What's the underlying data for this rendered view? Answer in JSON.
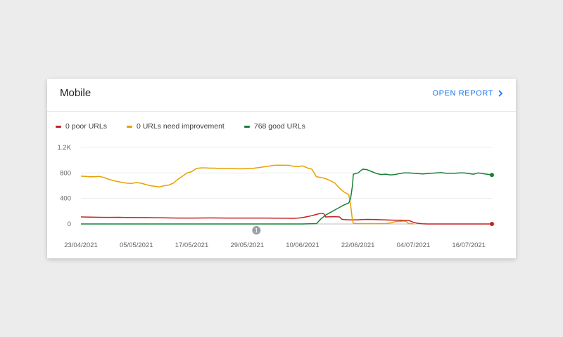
{
  "card": {
    "title": "Mobile",
    "open_report_label": "OPEN REPORT"
  },
  "colors": {
    "poor": "#c5221f",
    "needs_improvement": "#e8a000",
    "good": "#188038",
    "link": "#1a73e8"
  },
  "chart_data": {
    "type": "line",
    "title": "",
    "xlabel": "",
    "ylabel": "",
    "ylim": [
      0,
      1200
    ],
    "yticks": [
      {
        "value": 0,
        "label": "0"
      },
      {
        "value": 400,
        "label": "400"
      },
      {
        "value": 800,
        "label": "800"
      },
      {
        "value": 1200,
        "label": "1.2K"
      }
    ],
    "x_start_day": 0,
    "x_end_day": 89,
    "xticks": [
      {
        "day": 0,
        "label": "23/04/2021"
      },
      {
        "day": 12,
        "label": "05/05/2021"
      },
      {
        "day": 24,
        "label": "17/05/2021"
      },
      {
        "day": 36,
        "label": "29/05/2021"
      },
      {
        "day": 48,
        "label": "10/06/2021"
      },
      {
        "day": 60,
        "label": "22/06/2021"
      },
      {
        "day": 72,
        "label": "04/07/2021"
      },
      {
        "day": 84,
        "label": "16/07/2021"
      }
    ],
    "annotations": [
      {
        "day": 38,
        "label": "1"
      }
    ],
    "series": [
      {
        "key": "poor",
        "name": "0 poor URLs",
        "points": [
          [
            0,
            110
          ],
          [
            2,
            108
          ],
          [
            4,
            105
          ],
          [
            6,
            104
          ],
          [
            8,
            105
          ],
          [
            10,
            102
          ],
          [
            12,
            100
          ],
          [
            14,
            100
          ],
          [
            16,
            98
          ],
          [
            18,
            96
          ],
          [
            20,
            94
          ],
          [
            22,
            92
          ],
          [
            24,
            92
          ],
          [
            26,
            94
          ],
          [
            28,
            95
          ],
          [
            30,
            94
          ],
          [
            32,
            93
          ],
          [
            34,
            92
          ],
          [
            36,
            92
          ],
          [
            38,
            93
          ],
          [
            40,
            92
          ],
          [
            42,
            91
          ],
          [
            44,
            90
          ],
          [
            46,
            88
          ],
          [
            47,
            92
          ],
          [
            48,
            100
          ],
          [
            49,
            115
          ],
          [
            50,
            130
          ],
          [
            51,
            150
          ],
          [
            52,
            168
          ],
          [
            52.6,
            160
          ],
          [
            53,
            110
          ],
          [
            54,
            112
          ],
          [
            55,
            115
          ],
          [
            56,
            110
          ],
          [
            56.5,
            75
          ],
          [
            57,
            68
          ],
          [
            58,
            65
          ],
          [
            60,
            65
          ],
          [
            61,
            70
          ],
          [
            62,
            72
          ],
          [
            64,
            68
          ],
          [
            66,
            64
          ],
          [
            68,
            60
          ],
          [
            69,
            60
          ],
          [
            70,
            58
          ],
          [
            71,
            55
          ],
          [
            72,
            25
          ],
          [
            73,
            10
          ],
          [
            74,
            2
          ],
          [
            75,
            0
          ],
          [
            80,
            0
          ],
          [
            85,
            0
          ],
          [
            89,
            0
          ]
        ],
        "end_marker": true
      },
      {
        "key": "needs_improvement",
        "name": "0 URLs need improvement",
        "points": [
          [
            0,
            750
          ],
          [
            1,
            745
          ],
          [
            2,
            740
          ],
          [
            3,
            740
          ],
          [
            4,
            745
          ],
          [
            5,
            730
          ],
          [
            6,
            700
          ],
          [
            7,
            680
          ],
          [
            8,
            665
          ],
          [
            9,
            650
          ],
          [
            10,
            640
          ],
          [
            11,
            635
          ],
          [
            12,
            650
          ],
          [
            13,
            640
          ],
          [
            14,
            620
          ],
          [
            15,
            600
          ],
          [
            16,
            590
          ],
          [
            17,
            580
          ],
          [
            18,
            600
          ],
          [
            19,
            610
          ],
          [
            20,
            640
          ],
          [
            21,
            700
          ],
          [
            22,
            750
          ],
          [
            23,
            800
          ],
          [
            24,
            820
          ],
          [
            25,
            870
          ],
          [
            26,
            880
          ],
          [
            27,
            880
          ],
          [
            28,
            875
          ],
          [
            29,
            875
          ],
          [
            30,
            870
          ],
          [
            31,
            870
          ],
          [
            32,
            868
          ],
          [
            33,
            868
          ],
          [
            34,
            865
          ],
          [
            35,
            865
          ],
          [
            36,
            868
          ],
          [
            37,
            870
          ],
          [
            38,
            880
          ],
          [
            39,
            890
          ],
          [
            40,
            900
          ],
          [
            41,
            910
          ],
          [
            42,
            920
          ],
          [
            43,
            922
          ],
          [
            44,
            920
          ],
          [
            45,
            920
          ],
          [
            46,
            905
          ],
          [
            47,
            900
          ],
          [
            48,
            910
          ],
          [
            49,
            880
          ],
          [
            50,
            860
          ],
          [
            51,
            740
          ],
          [
            52,
            730
          ],
          [
            53,
            710
          ],
          [
            54,
            680
          ],
          [
            55,
            640
          ],
          [
            56,
            560
          ],
          [
            57,
            500
          ],
          [
            58,
            460
          ],
          [
            58.4,
            300
          ],
          [
            58.8,
            60
          ],
          [
            59,
            10
          ],
          [
            60,
            5
          ],
          [
            62,
            5
          ],
          [
            64,
            5
          ],
          [
            66,
            5
          ],
          [
            67,
            15
          ],
          [
            68,
            35
          ],
          [
            69,
            40
          ],
          [
            70,
            45
          ],
          [
            70.5,
            35
          ],
          [
            71,
            5
          ],
          [
            72,
            0
          ]
        ],
        "end_marker": false
      },
      {
        "key": "good",
        "name": "768 good URLs",
        "points": [
          [
            0,
            0
          ],
          [
            10,
            0
          ],
          [
            20,
            0
          ],
          [
            30,
            0
          ],
          [
            40,
            0
          ],
          [
            45,
            0
          ],
          [
            48,
            0
          ],
          [
            51,
            5
          ],
          [
            52,
            80
          ],
          [
            53,
            140
          ],
          [
            54,
            180
          ],
          [
            55,
            220
          ],
          [
            56,
            260
          ],
          [
            57,
            300
          ],
          [
            58,
            330
          ],
          [
            58.4,
            400
          ],
          [
            58.8,
            600
          ],
          [
            59,
            780
          ],
          [
            60,
            800
          ],
          [
            61,
            860
          ],
          [
            62,
            850
          ],
          [
            63,
            820
          ],
          [
            64,
            790
          ],
          [
            65,
            775
          ],
          [
            66,
            780
          ],
          [
            67,
            770
          ],
          [
            68,
            775
          ],
          [
            69,
            790
          ],
          [
            70,
            800
          ],
          [
            71,
            800
          ],
          [
            72,
            795
          ],
          [
            73,
            790
          ],
          [
            74,
            785
          ],
          [
            75,
            790
          ],
          [
            76,
            795
          ],
          [
            77,
            800
          ],
          [
            78,
            805
          ],
          [
            79,
            795
          ],
          [
            80,
            795
          ],
          [
            81,
            795
          ],
          [
            82,
            800
          ],
          [
            83,
            800
          ],
          [
            84,
            790
          ],
          [
            85,
            780
          ],
          [
            86,
            800
          ],
          [
            87,
            790
          ],
          [
            88,
            778
          ],
          [
            89,
            768
          ]
        ],
        "end_marker": true
      }
    ]
  }
}
